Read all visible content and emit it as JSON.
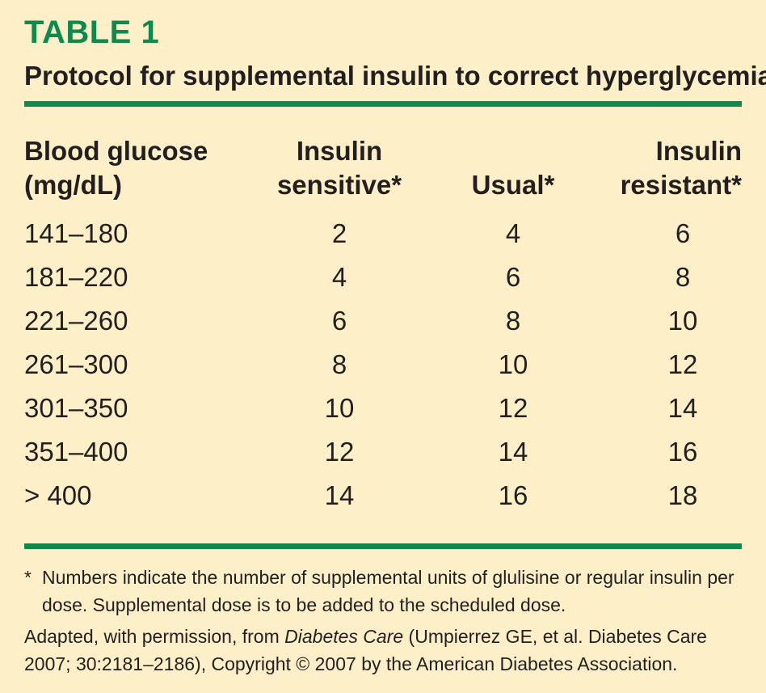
{
  "table_label": "TABLE 1",
  "title": "Protocol for supplemental insulin to correct hyperglycemia",
  "headers": {
    "glucose_line1": "Blood glucose",
    "glucose_line2": "(mg/dL)",
    "sensitive_line1": "Insulin",
    "sensitive_line2": "sensitive*",
    "usual": "Usual*",
    "resistant_line1": "Insulin",
    "resistant_line2": "resistant*"
  },
  "rows": [
    {
      "range": "141–180",
      "sensitive": "2",
      "usual": "4",
      "resistant": "6"
    },
    {
      "range": "181–220",
      "sensitive": "4",
      "usual": "6",
      "resistant": "8"
    },
    {
      "range": "221–260",
      "sensitive": "6",
      "usual": "8",
      "resistant": "10"
    },
    {
      "range": "261–300",
      "sensitive": "8",
      "usual": "10",
      "resistant": "12"
    },
    {
      "range": "301–350",
      "sensitive": "10",
      "usual": "12",
      "resistant": "14"
    },
    {
      "range": "351–400",
      "sensitive": "12",
      "usual": "14",
      "resistant": "16"
    },
    {
      "range": "> 400",
      "sensitive": "14",
      "usual": "16",
      "resistant": "18"
    }
  ],
  "footnote": {
    "marker": "*",
    "text": "Numbers indicate the number of supplemental units of glulisine or regular insulin per dose. Supplemental dose is to be added to the scheduled dose."
  },
  "credit": {
    "prefix": "Adapted, with permission, from ",
    "journal": "Diabetes Care",
    "suffix": " (Umpierrez GE, et al. Diabetes Care 2007; 30:2181–2186), Copyright © 2007 by the American Diabetes Association."
  },
  "colors": {
    "background": "#fdf0c8",
    "accent": "#0f8a4e",
    "text": "#231f20"
  }
}
